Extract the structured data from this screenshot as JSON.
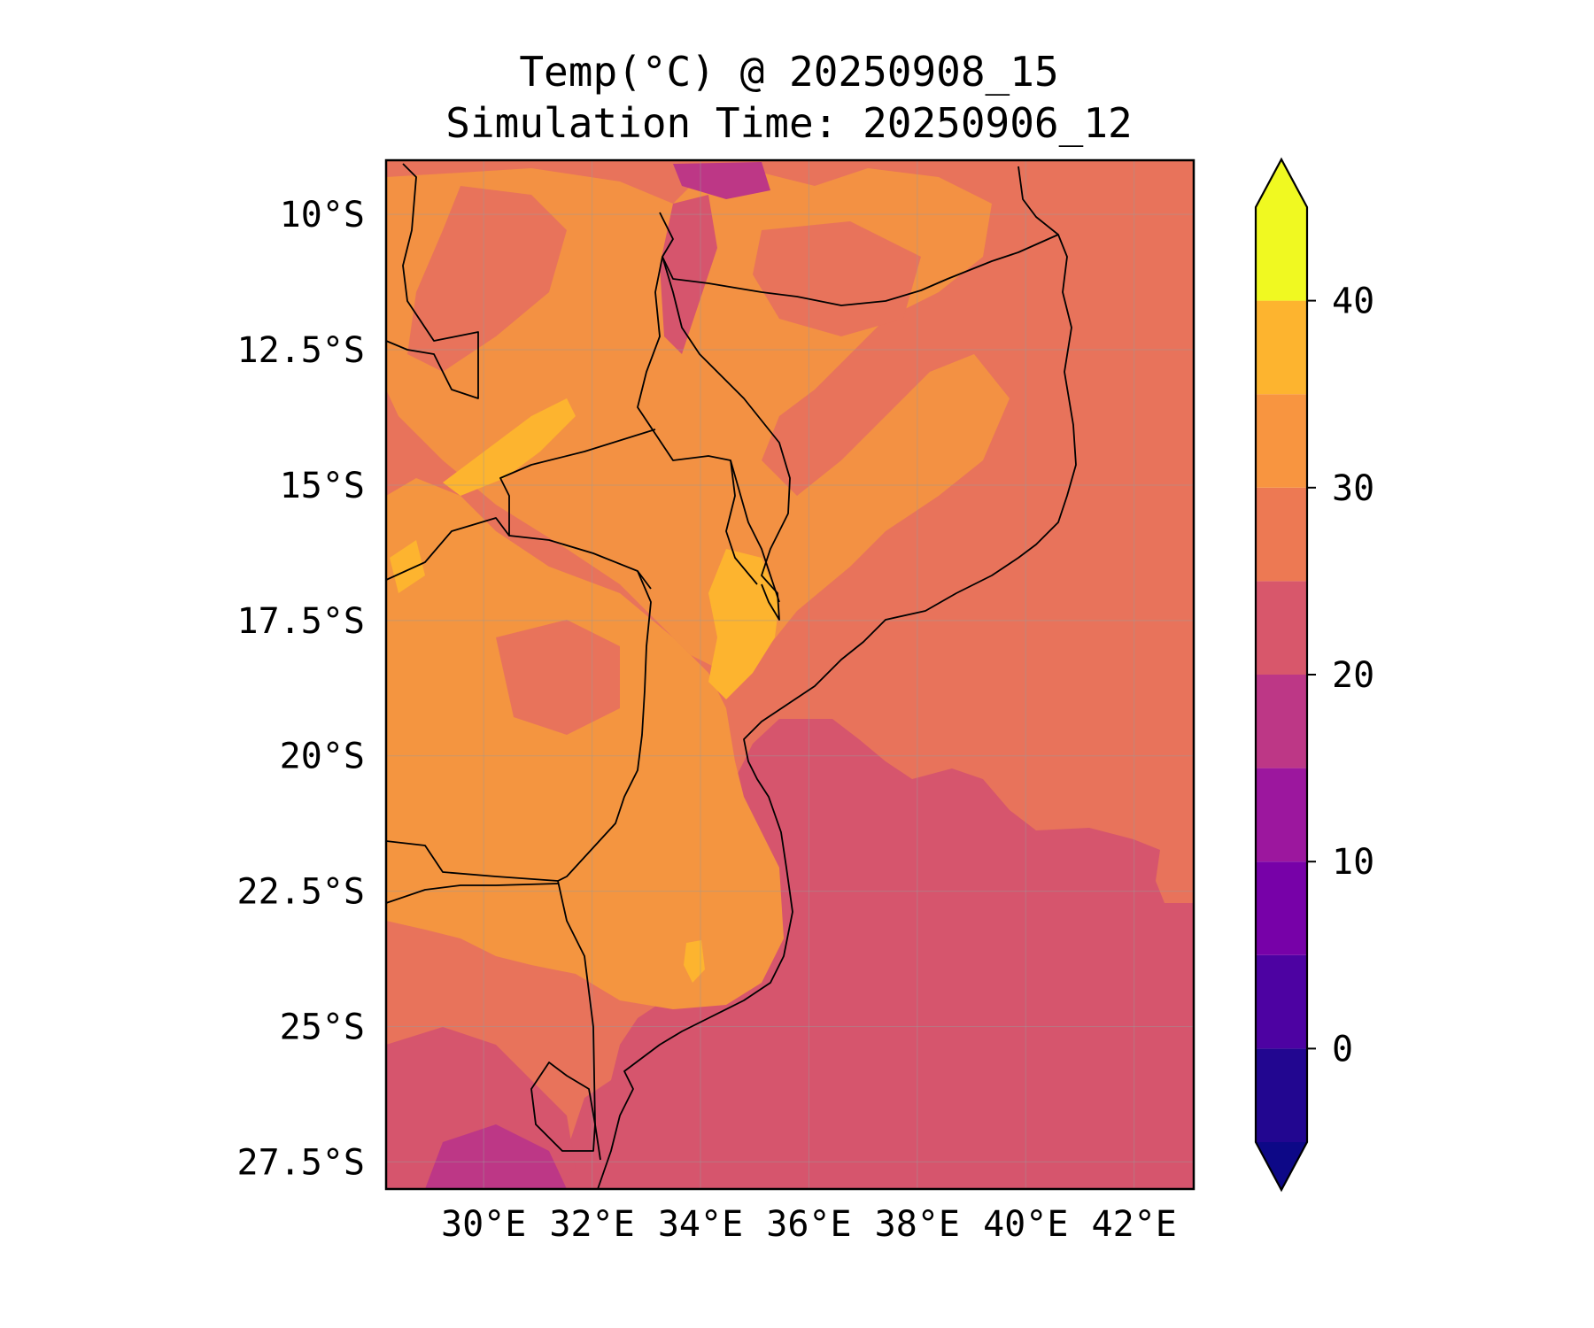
{
  "map": {
    "title_line1": "Temp(°C) @ 20250908_15",
    "title_line2": "Simulation Time: 20250906_12",
    "variable": "Temperature",
    "units": "°C",
    "extent": {
      "lon_min": 28.2,
      "lon_max": 43.1,
      "lat_min": -28.0,
      "lat_max": -9.0
    },
    "lat_ticks": [
      {
        "value": -10.0,
        "label": "10°S"
      },
      {
        "value": -12.5,
        "label": "12.5°S"
      },
      {
        "value": -15.0,
        "label": "15°S"
      },
      {
        "value": -17.5,
        "label": "17.5°S"
      },
      {
        "value": -20.0,
        "label": "20°S"
      },
      {
        "value": -22.5,
        "label": "22.5°S"
      },
      {
        "value": -25.0,
        "label": "25°S"
      },
      {
        "value": -27.5,
        "label": "27.5°S"
      }
    ],
    "lon_ticks": [
      {
        "value": 30,
        "label": "30°E"
      },
      {
        "value": 32,
        "label": "32°E"
      },
      {
        "value": 34,
        "label": "34°E"
      },
      {
        "value": 36,
        "label": "36°E"
      },
      {
        "value": 38,
        "label": "38°E"
      },
      {
        "value": 40,
        "label": "40°E"
      },
      {
        "value": 42,
        "label": "42°E"
      }
    ],
    "gridlines": true,
    "colorbar": {
      "levels": [
        -5,
        0,
        5,
        10,
        15,
        20,
        25,
        30,
        35,
        40,
        45
      ],
      "colors": [
        "#220690",
        "#4d02a2",
        "#7701a8",
        "#9c179e",
        "#bd3786",
        "#d8576b",
        "#ed7953",
        "#f89540",
        "#fdb42f",
        "#f0f921"
      ],
      "under_color": "#0d0887",
      "over_color": "#f0f921",
      "extend": "both",
      "ticks": [
        {
          "value": 0,
          "label": "0"
        },
        {
          "value": 10,
          "label": "10"
        },
        {
          "value": 20,
          "label": "20"
        },
        {
          "value": 30,
          "label": "30"
        },
        {
          "value": 40,
          "label": "40"
        }
      ]
    }
  }
}
